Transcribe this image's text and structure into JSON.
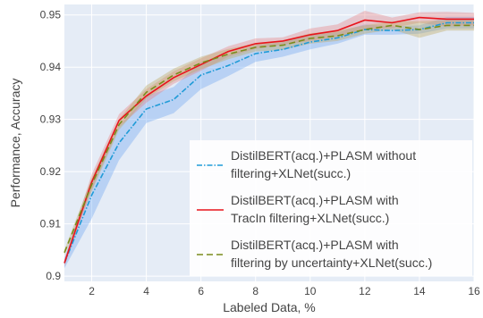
{
  "chart_data": {
    "type": "line",
    "xlabel": "Labeled Data, %",
    "ylabel": "Performance, Accuracy",
    "xlim": [
      1,
      16
    ],
    "ylim": [
      0.899,
      0.952
    ],
    "x_ticks": [
      2,
      4,
      6,
      8,
      10,
      12,
      14,
      16
    ],
    "y_ticks": [
      0.9,
      0.91,
      0.92,
      0.93,
      0.94,
      0.95
    ],
    "y_tick_labels": [
      "0.9",
      "0.91",
      "0.92",
      "0.93",
      "0.94",
      "0.95"
    ],
    "grid": true,
    "background": "#e5ecf6",
    "legend_position": "bottom-right",
    "x": [
      1,
      2,
      3,
      4,
      5,
      6,
      7,
      8,
      9,
      10,
      11,
      12,
      13,
      14,
      15,
      16
    ],
    "series": [
      {
        "name": "DistilBERT(acq.)+PLASM without filtering+XLNet(succ.)",
        "legend_lines": [
          "DistilBERT(acq.)+PLASM without",
          "filtering+XLNet(succ.)"
        ],
        "color": "#1f9bd7",
        "fill": "rgba(99,160,240,0.35)",
        "dash": "6,2,1.5,2",
        "values": [
          0.9025,
          0.9155,
          0.9255,
          0.932,
          0.9338,
          0.9385,
          0.9403,
          0.9426,
          0.9434,
          0.9448,
          0.9456,
          0.9472,
          0.947,
          0.9472,
          0.9485,
          0.9485
        ],
        "lower": [
          0.9015,
          0.911,
          0.9222,
          0.9293,
          0.9312,
          0.9358,
          0.9383,
          0.941,
          0.942,
          0.9434,
          0.9445,
          0.9462,
          0.9462,
          0.9464,
          0.9474,
          0.9474
        ],
        "upper": [
          0.9035,
          0.9185,
          0.9286,
          0.9345,
          0.9362,
          0.941,
          0.9423,
          0.9442,
          0.9448,
          0.9462,
          0.9467,
          0.9482,
          0.9478,
          0.948,
          0.9496,
          0.9496
        ]
      },
      {
        "name": "DistilBERT(acq.)+PLASM with TracIn filtering+XLNet(succ.)",
        "legend_lines": [
          "DistilBERT(acq.)+PLASM with",
          "TracIn filtering+XLNet(succ.)"
        ],
        "color": "#e8141c",
        "fill": "rgba(232,120,120,0.35)",
        "dash": "",
        "values": [
          0.9025,
          0.918,
          0.9298,
          0.9345,
          0.938,
          0.9405,
          0.943,
          0.9445,
          0.945,
          0.9462,
          0.947,
          0.949,
          0.9485,
          0.9495,
          0.9492,
          0.9492
        ],
        "lower": [
          0.9018,
          0.9165,
          0.9285,
          0.9332,
          0.9368,
          0.9393,
          0.942,
          0.9435,
          0.9443,
          0.945,
          0.9458,
          0.9472,
          0.9475,
          0.9485,
          0.9478,
          0.948
        ],
        "upper": [
          0.9032,
          0.9195,
          0.931,
          0.9358,
          0.9392,
          0.9417,
          0.944,
          0.9455,
          0.9457,
          0.9474,
          0.9482,
          0.9508,
          0.9495,
          0.9505,
          0.9506,
          0.9504
        ]
      },
      {
        "name": "DistilBERT(acq.)+PLASM with filtering by uncertainty+XLNet(succ.)",
        "legend_lines": [
          "DistilBERT(acq.)+PLASM with",
          "filtering by uncertainty+XLNet(succ.)"
        ],
        "color": "#7a8c1b",
        "fill": "rgba(190,170,100,0.4)",
        "dash": "7,4",
        "values": [
          0.9045,
          0.9175,
          0.929,
          0.9352,
          0.9385,
          0.9408,
          0.9425,
          0.9438,
          0.9442,
          0.9455,
          0.946,
          0.9472,
          0.948,
          0.9472,
          0.948,
          0.948
        ],
        "lower": [
          0.904,
          0.9162,
          0.928,
          0.934,
          0.9373,
          0.9396,
          0.9415,
          0.943,
          0.9433,
          0.9445,
          0.945,
          0.9464,
          0.9472,
          0.9456,
          0.947,
          0.947
        ],
        "upper": [
          0.905,
          0.9188,
          0.93,
          0.9365,
          0.9397,
          0.942,
          0.9435,
          0.9446,
          0.9451,
          0.9465,
          0.947,
          0.948,
          0.9488,
          0.9488,
          0.949,
          0.949
        ]
      }
    ]
  }
}
